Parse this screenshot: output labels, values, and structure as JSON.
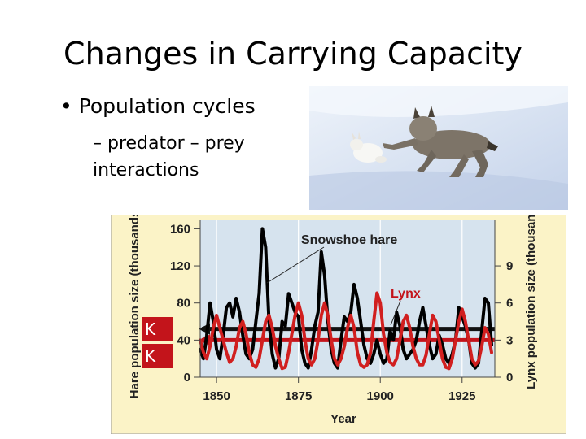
{
  "slide": {
    "title": "Changes in Carrying Capacity",
    "bullet_1": "Population cycles",
    "bullet_2": "– predator – prey interactions",
    "k_label_1": "K",
    "k_label_2": "K"
  },
  "photo": {
    "subject": "lynx chasing snowshoe hare on snow"
  },
  "chart_data": {
    "type": "line",
    "xlabel": "Year",
    "ylabel_left": "Hare population size (thousands)",
    "ylabel_right": "Lynx population size (thousands)",
    "x_ticks": [
      1850,
      1875,
      1900,
      1925
    ],
    "y_left_ticks": [
      0,
      40,
      80,
      120,
      160
    ],
    "y_right_ticks": [
      0,
      3,
      6,
      9
    ],
    "xlim": [
      1845,
      1935
    ],
    "ylim_left": [
      0,
      170
    ],
    "ylim_right": [
      0,
      12.75
    ],
    "annotations": [
      "Snowshoe hare",
      "Lynx"
    ],
    "carrying_capacity_hare": 52,
    "carrying_capacity_lynx": 3,
    "colors": {
      "hare": "#000000",
      "lynx": "#d11f1f",
      "plot_bg": "#d6e3ee",
      "frame_bg": "#fbf3c7"
    },
    "series": [
      {
        "name": "Snowshoe hare",
        "axis": "left",
        "x": [
          1845,
          1846,
          1847,
          1848,
          1849,
          1850,
          1851,
          1852,
          1853,
          1854,
          1855,
          1856,
          1857,
          1858,
          1859,
          1860,
          1861,
          1862,
          1863,
          1864,
          1865,
          1866,
          1867,
          1868,
          1869,
          1870,
          1871,
          1872,
          1873,
          1874,
          1875,
          1876,
          1877,
          1878,
          1879,
          1880,
          1881,
          1882,
          1883,
          1884,
          1885,
          1886,
          1887,
          1888,
          1889,
          1890,
          1891,
          1892,
          1893,
          1894,
          1895,
          1896,
          1897,
          1898,
          1899,
          1900,
          1901,
          1902,
          1903,
          1904,
          1905,
          1906,
          1907,
          1908,
          1909,
          1910,
          1911,
          1912,
          1913,
          1914,
          1915,
          1916,
          1917,
          1918,
          1919,
          1920,
          1921,
          1922,
          1923,
          1924,
          1925,
          1926,
          1927,
          1928,
          1929,
          1930,
          1931,
          1932,
          1933,
          1934
        ],
        "values": [
          30,
          20,
          45,
          80,
          60,
          30,
          20,
          45,
          75,
          80,
          65,
          85,
          70,
          45,
          25,
          20,
          30,
          60,
          90,
          160,
          140,
          60,
          25,
          10,
          20,
          60,
          55,
          90,
          80,
          70,
          65,
          30,
          15,
          10,
          30,
          55,
          70,
          135,
          110,
          60,
          30,
          15,
          10,
          40,
          65,
          60,
          70,
          100,
          85,
          60,
          35,
          20,
          15,
          25,
          40,
          25,
          15,
          20,
          50,
          40,
          70,
          55,
          30,
          20,
          25,
          30,
          40,
          60,
          75,
          55,
          35,
          20,
          25,
          45,
          35,
          20,
          15,
          25,
          40,
          75,
          65,
          55,
          40,
          15,
          10,
          15,
          50,
          85,
          80,
          35
        ]
      },
      {
        "name": "Lynx",
        "axis": "right",
        "x": [
          1845,
          1846,
          1847,
          1848,
          1849,
          1850,
          1851,
          1852,
          1853,
          1854,
          1855,
          1856,
          1857,
          1858,
          1859,
          1860,
          1861,
          1862,
          1863,
          1864,
          1865,
          1866,
          1867,
          1868,
          1869,
          1870,
          1871,
          1872,
          1873,
          1874,
          1875,
          1876,
          1877,
          1878,
          1879,
          1880,
          1881,
          1882,
          1883,
          1884,
          1885,
          1886,
          1887,
          1888,
          1889,
          1890,
          1891,
          1892,
          1893,
          1894,
          1895,
          1896,
          1897,
          1898,
          1899,
          1900,
          1901,
          1902,
          1903,
          1904,
          1905,
          1906,
          1907,
          1908,
          1909,
          1910,
          1911,
          1912,
          1913,
          1914,
          1915,
          1916,
          1917,
          1918,
          1919,
          1920,
          1921,
          1922,
          1923,
          1924,
          1925,
          1926,
          1927,
          1928,
          1929,
          1930,
          1931,
          1932,
          1933,
          1934
        ],
        "values": [
          3,
          2,
          1.5,
          2.5,
          4,
          5,
          4,
          3,
          2,
          1.2,
          1.5,
          2.5,
          4,
          4.5,
          3.5,
          2,
          1,
          0.8,
          1.5,
          3,
          4.5,
          5,
          4,
          2.5,
          1.5,
          0.7,
          0.8,
          2,
          3.5,
          5,
          6,
          5,
          3,
          1.5,
          1,
          1.5,
          3,
          5,
          6,
          5,
          3,
          1.5,
          1,
          1.5,
          2.5,
          4,
          5,
          4,
          2,
          1,
          0.8,
          1,
          2,
          4.5,
          6.8,
          6,
          3.5,
          2,
          1.2,
          1,
          1.5,
          3,
          4.5,
          5,
          4,
          2.5,
          1.5,
          1,
          1,
          1.8,
          3.5,
          5,
          4.5,
          3,
          1.5,
          0.8,
          0.7,
          1.5,
          3,
          4.5,
          5.5,
          4.5,
          3,
          1.5,
          1,
          1.3,
          2.5,
          4,
          3.5,
          2
        ]
      }
    ]
  }
}
